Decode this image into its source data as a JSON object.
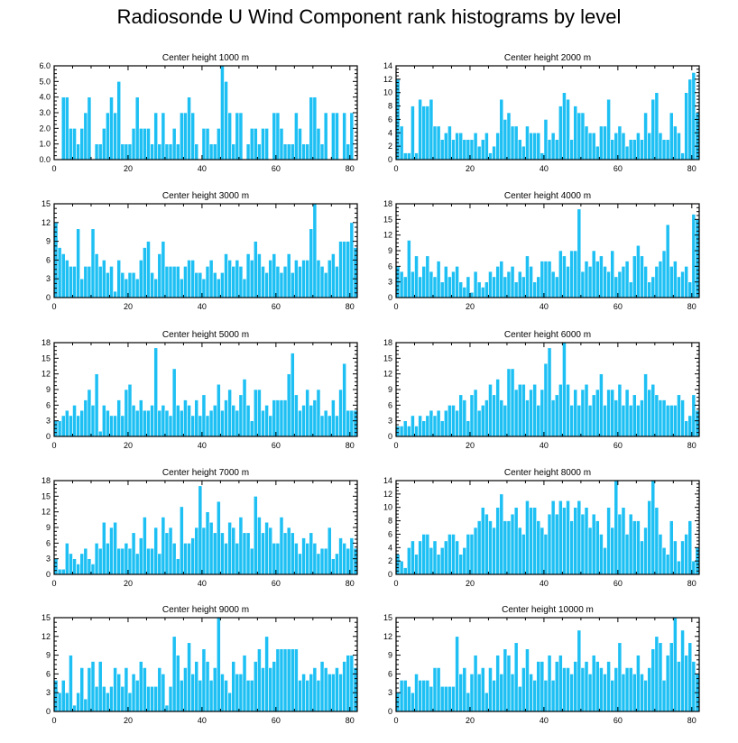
{
  "page": {
    "title": "Radiosonde U Wind Component rank histograms by level"
  },
  "style": {
    "bar_color": "#1ec0f4",
    "bar_edge": "#ffffff",
    "axis_color": "#000000"
  },
  "chart_data": [
    {
      "type": "bar",
      "title": "Center height 1000 m",
      "xlim": [
        0,
        82
      ],
      "ylim": [
        0,
        6
      ],
      "xticks": [
        0,
        20,
        40,
        60,
        80
      ],
      "yticks": [
        0,
        1,
        2,
        3,
        4,
        5,
        6
      ],
      "ytick_labels": [
        "0.0",
        "1.0",
        "2.0",
        "3.0",
        "4.0",
        "5.0",
        "6.0"
      ],
      "values": [
        0,
        0,
        4,
        4,
        2,
        2,
        1,
        2,
        3,
        4,
        0,
        1,
        1,
        2,
        3,
        4,
        3,
        5,
        1,
        1,
        1,
        2,
        4,
        2,
        2,
        2,
        1,
        3,
        1,
        3,
        1,
        1,
        2,
        1,
        3,
        3,
        4,
        3,
        1,
        0,
        2,
        2,
        1,
        1,
        2,
        6,
        5,
        3,
        1,
        3,
        3,
        0,
        1,
        2,
        2,
        1,
        2,
        2,
        0,
        3,
        3,
        2,
        1,
        1,
        1,
        3,
        2,
        1,
        1,
        4,
        4,
        2,
        1,
        3,
        0,
        3,
        3,
        0,
        3,
        1,
        3,
        0
      ]
    },
    {
      "type": "bar",
      "title": "Center height 2000 m",
      "xlim": [
        0,
        82
      ],
      "ylim": [
        0,
        14
      ],
      "xticks": [
        0,
        20,
        40,
        60,
        80
      ],
      "yticks": [
        0,
        2,
        4,
        6,
        8,
        10,
        12,
        14
      ],
      "values": [
        12,
        5,
        1,
        1,
        8,
        1,
        9,
        8,
        8,
        9,
        5,
        5,
        3,
        4,
        5,
        3,
        4,
        4,
        3,
        3,
        3,
        4,
        2,
        3,
        4,
        1,
        2,
        4,
        9,
        6,
        7,
        5,
        5,
        3,
        2,
        5,
        4,
        4,
        4,
        1,
        6,
        3,
        4,
        3,
        8,
        10,
        9,
        3,
        8,
        7,
        7,
        5,
        4,
        4,
        2,
        5,
        5,
        9,
        3,
        4,
        5,
        4,
        2,
        3,
        3,
        4,
        3,
        7,
        4,
        9,
        10,
        4,
        3,
        3,
        7,
        5,
        4,
        1,
        10,
        12,
        13,
        7
      ]
    },
    {
      "type": "bar",
      "title": "Center height 3000 m",
      "xlim": [
        0,
        82
      ],
      "ylim": [
        0,
        15
      ],
      "xticks": [
        0,
        20,
        40,
        60,
        80
      ],
      "yticks": [
        0,
        3,
        6,
        9,
        12,
        15
      ],
      "values": [
        12,
        8,
        7,
        6,
        5,
        5,
        11,
        3,
        5,
        5,
        11,
        7,
        5,
        6,
        4,
        5,
        1,
        6,
        4,
        3,
        4,
        4,
        3,
        6,
        8,
        9,
        4,
        3,
        7,
        9,
        5,
        5,
        5,
        5,
        3,
        5,
        6,
        6,
        4,
        4,
        3,
        5,
        6,
        4,
        3,
        4,
        7,
        6,
        5,
        6,
        5,
        3,
        7,
        6,
        9,
        7,
        5,
        4,
        6,
        7,
        5,
        4,
        5,
        7,
        4,
        6,
        5,
        6,
        6,
        11,
        15,
        6,
        5,
        4,
        6,
        7,
        5,
        9,
        9,
        9,
        12,
        8
      ]
    },
    {
      "type": "bar",
      "title": "Center height 4000 m",
      "xlim": [
        0,
        82
      ],
      "ylim": [
        0,
        18
      ],
      "xticks": [
        0,
        20,
        40,
        60,
        80
      ],
      "yticks": [
        0,
        3,
        6,
        9,
        12,
        15,
        18
      ],
      "values": [
        6,
        5,
        4,
        11,
        5,
        8,
        4,
        6,
        8,
        5,
        4,
        7,
        3,
        6,
        4,
        5,
        6,
        3,
        2,
        4,
        1,
        5,
        3,
        2,
        3,
        5,
        4,
        6,
        7,
        4,
        5,
        6,
        3,
        5,
        4,
        8,
        6,
        3,
        4,
        7,
        7,
        7,
        5,
        4,
        9,
        8,
        6,
        9,
        9,
        17,
        5,
        7,
        6,
        9,
        7,
        8,
        6,
        5,
        9,
        4,
        5,
        6,
        7,
        3,
        8,
        10,
        8,
        6,
        3,
        4,
        6,
        7,
        9,
        14,
        6,
        7,
        4,
        5,
        6,
        3,
        16,
        15
      ]
    },
    {
      "type": "bar",
      "title": "Center height 5000 m",
      "xlim": [
        0,
        82
      ],
      "ylim": [
        0,
        18
      ],
      "xticks": [
        0,
        20,
        40,
        60,
        80
      ],
      "yticks": [
        0,
        3,
        6,
        9,
        12,
        15,
        18
      ],
      "values": [
        3,
        3,
        4,
        5,
        4,
        6,
        4,
        5,
        7,
        9,
        6,
        12,
        1,
        6,
        5,
        4,
        4,
        7,
        4,
        9,
        10,
        6,
        5,
        7,
        5,
        5,
        6,
        17,
        5,
        6,
        5,
        4,
        13,
        6,
        5,
        7,
        6,
        4,
        7,
        4,
        8,
        4,
        5,
        6,
        10,
        5,
        7,
        9,
        6,
        5,
        8,
        11,
        6,
        3,
        9,
        9,
        5,
        6,
        4,
        7,
        7,
        7,
        7,
        12,
        16,
        8,
        5,
        6,
        9,
        6,
        7,
        9,
        4,
        5,
        4,
        7,
        4,
        9,
        14,
        5,
        5,
        5
      ]
    },
    {
      "type": "bar",
      "title": "Center height 6000 m",
      "xlim": [
        0,
        82
      ],
      "ylim": [
        0,
        18
      ],
      "xticks": [
        0,
        20,
        40,
        60,
        80
      ],
      "yticks": [
        0,
        3,
        6,
        9,
        12,
        15,
        18
      ],
      "values": [
        2,
        2,
        3,
        2,
        4,
        2,
        4,
        3,
        4,
        5,
        4,
        5,
        3,
        5,
        6,
        6,
        5,
        8,
        7,
        3,
        8,
        9,
        5,
        6,
        7,
        10,
        8,
        11,
        7,
        6,
        13,
        13,
        9,
        10,
        10,
        7,
        9,
        10,
        6,
        9,
        14,
        17,
        7,
        8,
        10,
        18,
        10,
        6,
        9,
        6,
        9,
        10,
        6,
        8,
        9,
        12,
        6,
        9,
        9,
        7,
        10,
        6,
        9,
        6,
        8,
        6,
        7,
        12,
        9,
        10,
        8,
        7,
        7,
        6,
        6,
        6,
        8,
        7,
        3,
        4,
        8,
        5
      ]
    },
    {
      "type": "bar",
      "title": "Center height 7000 m",
      "xlim": [
        0,
        82
      ],
      "ylim": [
        0,
        18
      ],
      "xticks": [
        0,
        20,
        40,
        60,
        80
      ],
      "yticks": [
        0,
        3,
        6,
        9,
        12,
        15,
        18
      ],
      "values": [
        3,
        1,
        1,
        6,
        4,
        3,
        2,
        4,
        5,
        3,
        2,
        6,
        5,
        10,
        6,
        9,
        10,
        5,
        5,
        6,
        5,
        8,
        4,
        7,
        11,
        5,
        5,
        9,
        4,
        11,
        8,
        9,
        6,
        3,
        13,
        6,
        6,
        7,
        9,
        17,
        9,
        12,
        10,
        8,
        14,
        8,
        6,
        10,
        9,
        6,
        11,
        8,
        8,
        5,
        15,
        11,
        8,
        10,
        9,
        6,
        6,
        11,
        8,
        9,
        8,
        6,
        4,
        7,
        6,
        8,
        6,
        4,
        5,
        5,
        9,
        3,
        4,
        7,
        6,
        5,
        7,
        5
      ]
    },
    {
      "type": "bar",
      "title": "Center height 8000 m",
      "xlim": [
        0,
        82
      ],
      "ylim": [
        0,
        14
      ],
      "xticks": [
        0,
        20,
        40,
        60,
        80
      ],
      "yticks": [
        0,
        2,
        4,
        6,
        8,
        10,
        12,
        14
      ],
      "values": [
        3,
        2,
        1,
        4,
        5,
        3,
        5,
        6,
        6,
        4,
        5,
        3,
        4,
        5,
        6,
        6,
        5,
        3,
        4,
        6,
        6,
        7,
        8,
        10,
        9,
        8,
        7,
        10,
        12,
        8,
        8,
        9,
        10,
        7,
        6,
        11,
        10,
        10,
        8,
        7,
        6,
        9,
        11,
        9,
        11,
        10,
        11,
        8,
        10,
        11,
        9,
        10,
        7,
        9,
        8,
        6,
        4,
        10,
        7,
        14,
        9,
        10,
        6,
        9,
        8,
        8,
        5,
        7,
        11,
        14,
        10,
        6,
        4,
        3,
        8,
        5,
        2,
        5,
        6,
        8,
        2,
        4
      ]
    },
    {
      "type": "bar",
      "title": "Center height 9000 m",
      "xlim": [
        0,
        82
      ],
      "ylim": [
        0,
        15
      ],
      "xticks": [
        0,
        20,
        40,
        60,
        80
      ],
      "yticks": [
        0,
        3,
        6,
        9,
        12,
        15
      ],
      "values": [
        5,
        3,
        5,
        3,
        9,
        1,
        3,
        7,
        2,
        7,
        8,
        4,
        8,
        4,
        3,
        4,
        7,
        6,
        4,
        7,
        3,
        6,
        5,
        8,
        7,
        4,
        4,
        4,
        7,
        6,
        1,
        4,
        12,
        9,
        5,
        7,
        11,
        6,
        8,
        5,
        10,
        8,
        5,
        7,
        15,
        6,
        5,
        3,
        8,
        6,
        6,
        9,
        5,
        5,
        8,
        10,
        7,
        12,
        7,
        8,
        10,
        10,
        10,
        10,
        10,
        10,
        5,
        6,
        5,
        6,
        7,
        5,
        8,
        7,
        6,
        6,
        7,
        6,
        8,
        9,
        9,
        7
      ]
    },
    {
      "type": "bar",
      "title": "Center height 10000 m",
      "xlim": [
        0,
        82
      ],
      "ylim": [
        0,
        15
      ],
      "xticks": [
        0,
        20,
        40,
        60,
        80
      ],
      "yticks": [
        0,
        3,
        6,
        9,
        12,
        15
      ],
      "values": [
        3,
        5,
        5,
        4,
        3,
        6,
        5,
        5,
        5,
        4,
        7,
        7,
        4,
        4,
        4,
        4,
        12,
        6,
        7,
        3,
        6,
        9,
        6,
        7,
        3,
        7,
        5,
        9,
        6,
        10,
        9,
        6,
        11,
        4,
        7,
        10,
        6,
        5,
        8,
        8,
        5,
        9,
        5,
        8,
        9,
        7,
        7,
        6,
        8,
        13,
        7,
        8,
        6,
        9,
        8,
        7,
        6,
        8,
        5,
        7,
        11,
        6,
        7,
        7,
        6,
        9,
        6,
        5,
        7,
        10,
        12,
        11,
        5,
        9,
        11,
        15,
        8,
        13,
        9,
        11,
        8,
        6
      ]
    }
  ]
}
